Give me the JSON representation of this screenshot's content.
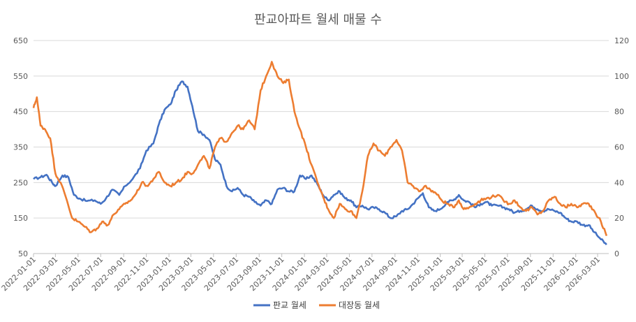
{
  "chart_data": {
    "type": "line",
    "title": "판교아파트 월세 매물 수",
    "xlabel": "",
    "ylabel": "",
    "y_left": {
      "min": 50,
      "max": 650,
      "ticks": [
        50,
        150,
        250,
        350,
        450,
        550,
        650
      ]
    },
    "y_right": {
      "min": 0,
      "max": 120,
      "ticks": [
        0,
        20,
        40,
        60,
        80,
        100,
        120
      ]
    },
    "x_range": [
      "2022-01-01",
      "2026-03-31"
    ],
    "x_ticks": [
      "2022-01-01",
      "2022-03-01",
      "2022-05-01",
      "2022-07-01",
      "2022-09-01",
      "2022-11-01",
      "2023-01-01",
      "2023-03-01",
      "2023-05-01",
      "2023-07-01",
      "2023-09-01",
      "2023-11-01",
      "2024-01-01",
      "2024-03-01",
      "2024-05-01",
      "2024-07-01",
      "2024-09-01",
      "2024-11-01",
      "2025-01-01",
      "2025-03-01",
      "2025-05-01",
      "2025-07-01",
      "2025-09-01",
      "2025-11-01",
      "2026-01-01",
      "2026-03-01"
    ],
    "grid": "horizontal",
    "legend_position": "bottom",
    "series": [
      {
        "name": "판교 월세",
        "axis": "left",
        "color": "#4472C4",
        "points": [
          [
            "2022-01-01",
            260
          ],
          [
            "2022-01-20",
            265
          ],
          [
            "2022-02-05",
            272
          ],
          [
            "2022-02-20",
            250
          ],
          [
            "2022-03-01",
            240
          ],
          [
            "2022-03-20",
            270
          ],
          [
            "2022-04-05",
            265
          ],
          [
            "2022-04-20",
            215
          ],
          [
            "2022-05-05",
            205
          ],
          [
            "2022-05-25",
            198
          ],
          [
            "2022-06-15",
            200
          ],
          [
            "2022-07-01",
            190
          ],
          [
            "2022-07-15",
            205
          ],
          [
            "2022-08-01",
            230
          ],
          [
            "2022-08-20",
            215
          ],
          [
            "2022-09-05",
            240
          ],
          [
            "2022-09-25",
            260
          ],
          [
            "2022-10-15",
            290
          ],
          [
            "2022-11-01",
            340
          ],
          [
            "2022-11-20",
            360
          ],
          [
            "2022-12-05",
            415
          ],
          [
            "2022-12-20",
            455
          ],
          [
            "2023-01-05",
            470
          ],
          [
            "2023-01-20",
            510
          ],
          [
            "2023-02-05",
            535
          ],
          [
            "2023-02-20",
            520
          ],
          [
            "2023-03-05",
            465
          ],
          [
            "2023-03-20",
            395
          ],
          [
            "2023-04-05",
            385
          ],
          [
            "2023-04-20",
            370
          ],
          [
            "2023-05-05",
            315
          ],
          [
            "2023-05-20",
            300
          ],
          [
            "2023-06-05",
            240
          ],
          [
            "2023-06-20",
            225
          ],
          [
            "2023-07-05",
            235
          ],
          [
            "2023-07-20",
            215
          ],
          [
            "2023-08-05",
            210
          ],
          [
            "2023-08-20",
            195
          ],
          [
            "2023-09-05",
            185
          ],
          [
            "2023-09-20",
            200
          ],
          [
            "2023-10-05",
            190
          ],
          [
            "2023-10-20",
            230
          ],
          [
            "2023-11-05",
            235
          ],
          [
            "2023-11-20",
            225
          ],
          [
            "2023-12-05",
            225
          ],
          [
            "2023-12-20",
            270
          ],
          [
            "2024-01-05",
            260
          ],
          [
            "2024-01-20",
            270
          ],
          [
            "2024-02-05",
            245
          ],
          [
            "2024-02-20",
            215
          ],
          [
            "2024-03-05",
            200
          ],
          [
            "2024-03-20",
            215
          ],
          [
            "2024-04-05",
            225
          ],
          [
            "2024-04-20",
            205
          ],
          [
            "2024-05-05",
            200
          ],
          [
            "2024-05-20",
            180
          ],
          [
            "2024-06-05",
            185
          ],
          [
            "2024-06-20",
            175
          ],
          [
            "2024-07-05",
            180
          ],
          [
            "2024-07-20",
            175
          ],
          [
            "2024-08-05",
            165
          ],
          [
            "2024-08-20",
            150
          ],
          [
            "2024-09-05",
            155
          ],
          [
            "2024-09-20",
            170
          ],
          [
            "2024-10-05",
            175
          ],
          [
            "2024-10-20",
            190
          ],
          [
            "2024-11-01",
            205
          ],
          [
            "2024-11-15",
            220
          ],
          [
            "2024-12-01",
            180
          ],
          [
            "2024-12-15",
            170
          ],
          [
            "2025-01-01",
            175
          ],
          [
            "2025-01-20",
            195
          ],
          [
            "2025-02-05",
            200
          ],
          [
            "2025-02-20",
            215
          ],
          [
            "2025-03-05",
            200
          ],
          [
            "2025-03-20",
            195
          ],
          [
            "2025-04-05",
            180
          ],
          [
            "2025-04-20",
            190
          ],
          [
            "2025-05-05",
            195
          ],
          [
            "2025-05-20",
            185
          ],
          [
            "2025-06-05",
            185
          ],
          [
            "2025-06-20",
            180
          ],
          [
            "2025-07-05",
            175
          ],
          [
            "2025-07-20",
            165
          ],
          [
            "2025-08-05",
            170
          ],
          [
            "2025-08-20",
            175
          ],
          [
            "2025-09-05",
            185
          ],
          [
            "2025-09-20",
            175
          ],
          [
            "2025-10-05",
            170
          ],
          [
            "2025-10-20",
            175
          ],
          [
            "2025-11-05",
            170
          ],
          [
            "2025-11-20",
            165
          ],
          [
            "2025-12-05",
            150
          ],
          [
            "2025-12-20",
            140
          ],
          [
            "2026-01-05",
            140
          ],
          [
            "2026-01-20",
            130
          ],
          [
            "2026-02-05",
            130
          ],
          [
            "2026-02-20",
            110
          ],
          [
            "2026-03-10",
            90
          ],
          [
            "2026-03-25",
            75
          ]
        ]
      },
      {
        "name": "대장동 월세",
        "axis": "right",
        "color": "#ED7D31",
        "points": [
          [
            "2022-01-01",
            82
          ],
          [
            "2022-01-10",
            88
          ],
          [
            "2022-01-20",
            72
          ],
          [
            "2022-02-01",
            70
          ],
          [
            "2022-02-15",
            65
          ],
          [
            "2022-03-01",
            45
          ],
          [
            "2022-03-15",
            40
          ],
          [
            "2022-04-01",
            30
          ],
          [
            "2022-04-15",
            20
          ],
          [
            "2022-05-01",
            18
          ],
          [
            "2022-05-20",
            15
          ],
          [
            "2022-06-05",
            12
          ],
          [
            "2022-06-20",
            14
          ],
          [
            "2022-07-05",
            18
          ],
          [
            "2022-07-20",
            16
          ],
          [
            "2022-08-05",
            22
          ],
          [
            "2022-08-20",
            25
          ],
          [
            "2022-09-05",
            28
          ],
          [
            "2022-09-20",
            30
          ],
          [
            "2022-10-05",
            34
          ],
          [
            "2022-10-20",
            40
          ],
          [
            "2022-11-05",
            38
          ],
          [
            "2022-11-20",
            42
          ],
          [
            "2022-12-05",
            46
          ],
          [
            "2022-12-20",
            40
          ],
          [
            "2023-01-05",
            38
          ],
          [
            "2023-01-20",
            40
          ],
          [
            "2023-02-05",
            42
          ],
          [
            "2023-02-20",
            46
          ],
          [
            "2023-03-05",
            45
          ],
          [
            "2023-03-20",
            50
          ],
          [
            "2023-04-05",
            55
          ],
          [
            "2023-04-20",
            48
          ],
          [
            "2023-05-05",
            60
          ],
          [
            "2023-05-20",
            65
          ],
          [
            "2023-06-05",
            63
          ],
          [
            "2023-06-20",
            68
          ],
          [
            "2023-07-05",
            72
          ],
          [
            "2023-07-20",
            70
          ],
          [
            "2023-08-05",
            75
          ],
          [
            "2023-08-20",
            70
          ],
          [
            "2023-09-05",
            92
          ],
          [
            "2023-09-20",
            100
          ],
          [
            "2023-10-05",
            108
          ],
          [
            "2023-10-20",
            100
          ],
          [
            "2023-11-05",
            96
          ],
          [
            "2023-11-20",
            98
          ],
          [
            "2023-12-05",
            80
          ],
          [
            "2023-12-20",
            70
          ],
          [
            "2024-01-05",
            60
          ],
          [
            "2024-01-20",
            50
          ],
          [
            "2024-02-05",
            40
          ],
          [
            "2024-02-20",
            32
          ],
          [
            "2024-03-05",
            25
          ],
          [
            "2024-03-20",
            20
          ],
          [
            "2024-04-05",
            28
          ],
          [
            "2024-04-20",
            25
          ],
          [
            "2024-05-05",
            24
          ],
          [
            "2024-05-20",
            20
          ],
          [
            "2024-06-05",
            35
          ],
          [
            "2024-06-20",
            55
          ],
          [
            "2024-07-05",
            62
          ],
          [
            "2024-07-20",
            58
          ],
          [
            "2024-08-05",
            55
          ],
          [
            "2024-08-20",
            60
          ],
          [
            "2024-09-05",
            64
          ],
          [
            "2024-09-20",
            58
          ],
          [
            "2024-10-05",
            40
          ],
          [
            "2024-10-20",
            38
          ],
          [
            "2024-11-05",
            35
          ],
          [
            "2024-11-20",
            38
          ],
          [
            "2024-12-05",
            36
          ],
          [
            "2024-12-20",
            34
          ],
          [
            "2025-01-05",
            30
          ],
          [
            "2025-01-20",
            28
          ],
          [
            "2025-02-05",
            26
          ],
          [
            "2025-02-20",
            30
          ],
          [
            "2025-03-05",
            25
          ],
          [
            "2025-03-20",
            26
          ],
          [
            "2025-04-05",
            28
          ],
          [
            "2025-04-20",
            30
          ],
          [
            "2025-05-05",
            31
          ],
          [
            "2025-05-20",
            32
          ],
          [
            "2025-06-05",
            33
          ],
          [
            "2025-06-20",
            30
          ],
          [
            "2025-07-05",
            28
          ],
          [
            "2025-07-20",
            30
          ],
          [
            "2025-08-05",
            26
          ],
          [
            "2025-08-20",
            24
          ],
          [
            "2025-09-05",
            26
          ],
          [
            "2025-09-20",
            22
          ],
          [
            "2025-10-05",
            24
          ],
          [
            "2025-10-20",
            30
          ],
          [
            "2025-11-05",
            32
          ],
          [
            "2025-11-20",
            28
          ],
          [
            "2025-12-05",
            26
          ],
          [
            "2025-12-20",
            28
          ],
          [
            "2026-01-05",
            26
          ],
          [
            "2026-01-20",
            28
          ],
          [
            "2026-02-05",
            28
          ],
          [
            "2026-02-20",
            24
          ],
          [
            "2026-03-10",
            18
          ],
          [
            "2026-03-25",
            10
          ]
        ]
      }
    ]
  }
}
